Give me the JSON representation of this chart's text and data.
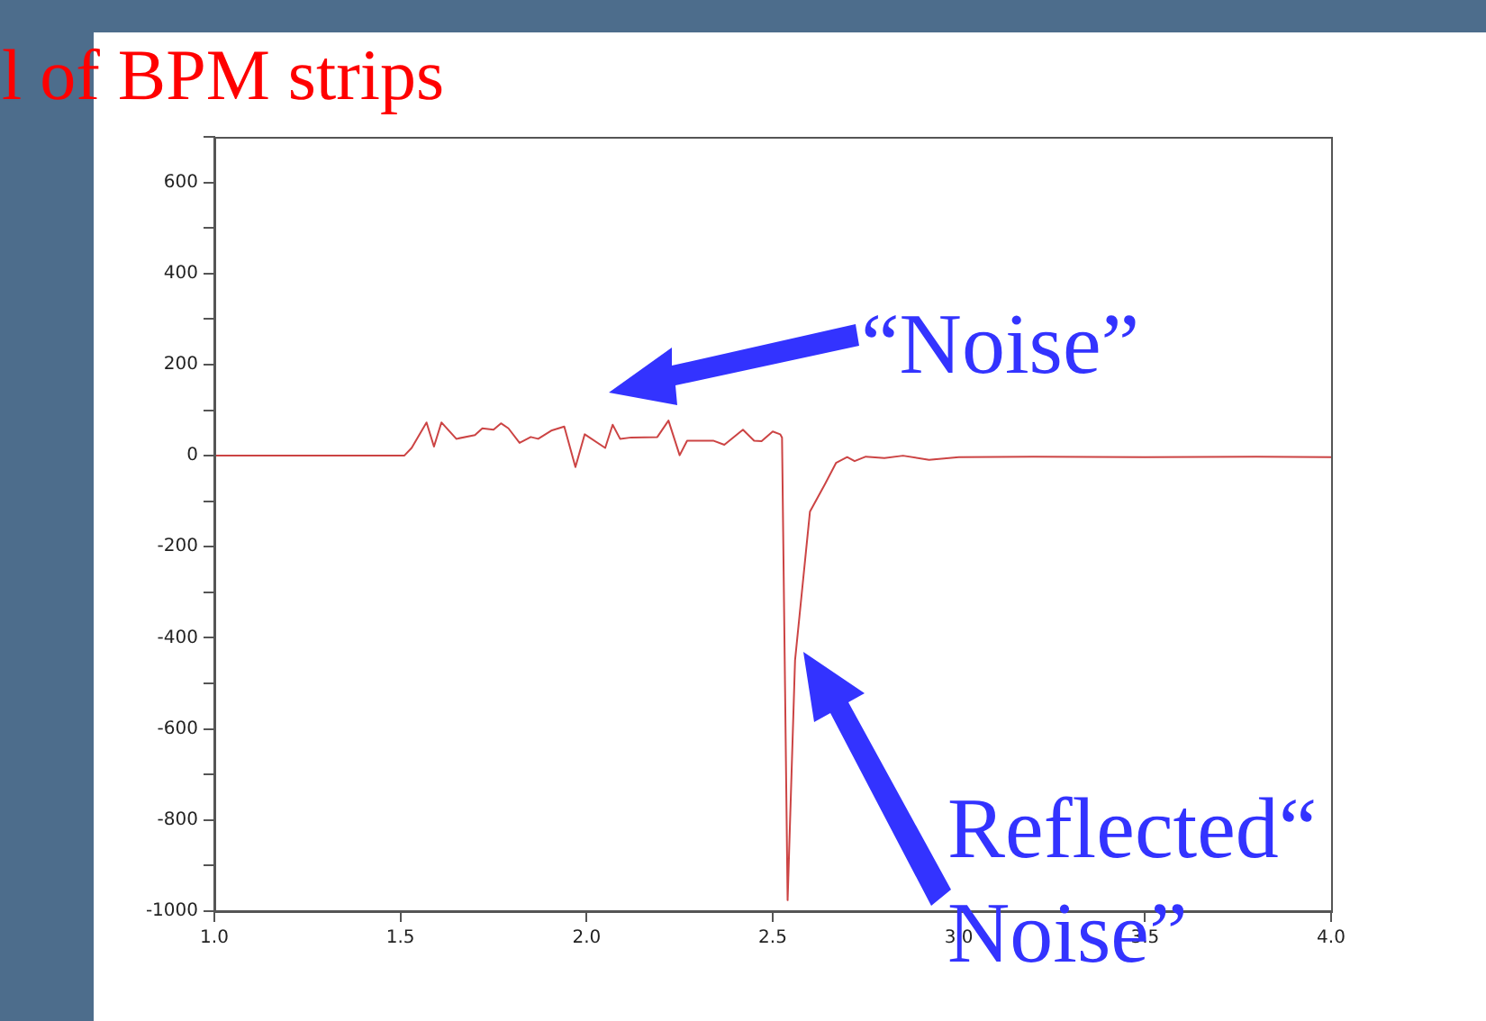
{
  "chart_data": {
    "type": "line",
    "title": "l of BPM strips",
    "x": [
      1.0,
      1.51,
      1.53,
      1.57,
      1.59,
      1.61,
      1.65,
      1.7,
      1.72,
      1.75,
      1.77,
      1.79,
      1.82,
      1.85,
      1.87,
      1.905,
      1.94,
      1.97,
      1.995,
      2.05,
      2.07,
      2.09,
      2.12,
      2.19,
      2.22,
      2.25,
      2.27,
      2.34,
      2.37,
      2.42,
      2.45,
      2.47,
      2.5,
      2.52,
      2.525,
      2.54,
      2.56,
      2.6,
      2.64,
      2.67,
      2.7,
      2.72,
      2.75,
      2.8,
      2.85,
      2.92,
      3.0,
      3.2,
      3.5,
      3.8,
      4.0
    ],
    "series": [
      {
        "color": "#cc4444",
        "values": [
          0,
          0,
          17,
          73,
          20,
          73,
          37,
          45,
          60,
          57,
          71,
          60,
          28,
          41,
          37,
          55,
          64,
          -25,
          47,
          17,
          68,
          37,
          40,
          41,
          77,
          1,
          33,
          33,
          24,
          57,
          33,
          32,
          53,
          47,
          40,
          -976,
          -449,
          -123,
          -63,
          -16,
          -3,
          -12,
          -2,
          -5,
          0,
          -9,
          -3,
          -2,
          -3,
          -2,
          -3
        ]
      }
    ],
    "xlim": [
      1.0,
      4.0
    ],
    "ylim": [
      -1000,
      700
    ],
    "xticks": [
      {
        "value": 1,
        "label": "1.0"
      },
      {
        "value": 1.5,
        "label": "1.5"
      },
      {
        "value": 2,
        "label": "2.0"
      },
      {
        "value": 2.5,
        "label": "2.5"
      },
      {
        "value": 3,
        "label": "3.0"
      },
      {
        "value": 3.5,
        "label": "3.5"
      },
      {
        "value": 4,
        "label": "4.0"
      }
    ],
    "yticks": [
      -1000,
      {
        "value": -900,
        "label": null
      },
      -800,
      {
        "value": -700,
        "label": null
      },
      -600,
      {
        "value": -500,
        "label": null
      },
      -400,
      {
        "value": -300,
        "label": null
      },
      -200,
      {
        "value": -100,
        "label": null
      },
      0,
      {
        "value": 100,
        "label": null
      },
      200,
      {
        "value": 300,
        "label": null
      },
      400,
      {
        "value": 500,
        "label": null
      },
      600,
      {
        "value": 700,
        "label": null
      }
    ],
    "marker": "none",
    "line_style": "solid",
    "grid": false,
    "legend": false,
    "annotations": [
      "“Noise”",
      "Reflected“ Noise”"
    ]
  }
}
